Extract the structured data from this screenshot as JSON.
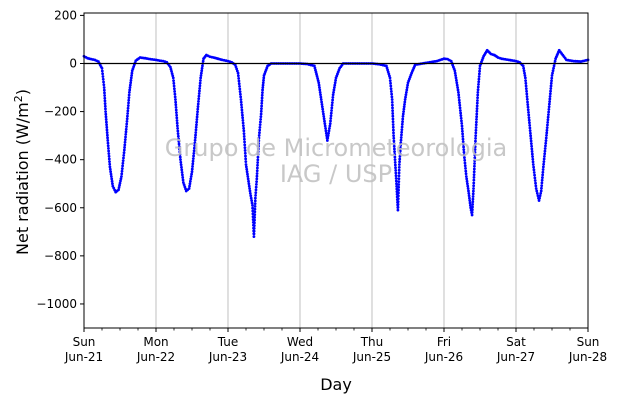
{
  "chart_data": {
    "type": "scatter",
    "title": "",
    "xlabel": "Day",
    "ylabel_main": "Net radiation (W/m",
    "ylabel_sup": "2",
    "ylabel_close": ")",
    "ylim": [
      -1100,
      210
    ],
    "xlim": [
      0,
      7
    ],
    "y_ticks": [
      200,
      0,
      -200,
      -400,
      -600,
      -800,
      -1000
    ],
    "y_tick_labels": [
      "200",
      "0",
      "−200",
      "−400",
      "−600",
      "−800",
      "−1000"
    ],
    "x_ticks": [
      {
        "x": 0,
        "day": "Sun",
        "date": "Jun-21"
      },
      {
        "x": 1,
        "day": "Mon",
        "date": "Jun-22"
      },
      {
        "x": 2,
        "day": "Tue",
        "date": "Jun-23"
      },
      {
        "x": 3,
        "day": "Wed",
        "date": "Jun-24"
      },
      {
        "x": 4,
        "day": "Thu",
        "date": "Jun-25"
      },
      {
        "x": 5,
        "day": "Fri",
        "date": "Jun-26"
      },
      {
        "x": 6,
        "day": "Sat",
        "date": "Jun-27"
      },
      {
        "x": 7,
        "day": "Sun",
        "date": "Jun-28"
      }
    ],
    "grid": "vertical",
    "reference_line_y": 0,
    "series": [
      {
        "color": "#0000ff",
        "points": [
          [
            0.0,
            30
          ],
          [
            0.05,
            22
          ],
          [
            0.1,
            18
          ],
          [
            0.15,
            15
          ],
          [
            0.2,
            8
          ],
          [
            0.25,
            -20
          ],
          [
            0.28,
            -100
          ],
          [
            0.3,
            -200
          ],
          [
            0.33,
            -320
          ],
          [
            0.36,
            -430
          ],
          [
            0.4,
            -510
          ],
          [
            0.44,
            -535
          ],
          [
            0.48,
            -525
          ],
          [
            0.52,
            -470
          ],
          [
            0.56,
            -360
          ],
          [
            0.6,
            -230
          ],
          [
            0.63,
            -120
          ],
          [
            0.67,
            -30
          ],
          [
            0.72,
            12
          ],
          [
            0.78,
            25
          ],
          [
            0.85,
            22
          ],
          [
            0.92,
            18
          ],
          [
            1.0,
            15
          ],
          [
            1.05,
            12
          ],
          [
            1.1,
            10
          ],
          [
            1.15,
            5
          ],
          [
            1.2,
            -15
          ],
          [
            1.24,
            -60
          ],
          [
            1.27,
            -150
          ],
          [
            1.3,
            -270
          ],
          [
            1.34,
            -400
          ],
          [
            1.38,
            -495
          ],
          [
            1.42,
            -530
          ],
          [
            1.46,
            -520
          ],
          [
            1.5,
            -450
          ],
          [
            1.54,
            -330
          ],
          [
            1.58,
            -190
          ],
          [
            1.62,
            -60
          ],
          [
            1.66,
            20
          ],
          [
            1.7,
            35
          ],
          [
            1.75,
            28
          ],
          [
            1.8,
            25
          ],
          [
            1.86,
            20
          ],
          [
            1.92,
            15
          ],
          [
            2.0,
            10
          ],
          [
            2.05,
            5
          ],
          [
            2.1,
            -5
          ],
          [
            2.14,
            -40
          ],
          [
            2.18,
            -150
          ],
          [
            2.22,
            -280
          ],
          [
            2.25,
            -420
          ],
          [
            2.28,
            -480
          ],
          [
            2.31,
            -540
          ],
          [
            2.34,
            -590
          ],
          [
            2.36,
            -720
          ],
          [
            2.38,
            -560
          ],
          [
            2.4,
            -480
          ],
          [
            2.43,
            -310
          ],
          [
            2.46,
            -210
          ],
          [
            2.48,
            -110
          ],
          [
            2.5,
            -50
          ],
          [
            2.55,
            -10
          ],
          [
            2.6,
            0
          ],
          [
            2.7,
            0
          ],
          [
            2.8,
            0
          ],
          [
            2.9,
            0
          ],
          [
            3.0,
            0
          ],
          [
            3.1,
            -2
          ],
          [
            3.2,
            -10
          ],
          [
            3.26,
            -80
          ],
          [
            3.3,
            -160
          ],
          [
            3.34,
            -240
          ],
          [
            3.38,
            -320
          ],
          [
            3.42,
            -250
          ],
          [
            3.46,
            -130
          ],
          [
            3.5,
            -60
          ],
          [
            3.55,
            -20
          ],
          [
            3.6,
            0
          ],
          [
            3.7,
            0
          ],
          [
            3.8,
            0
          ],
          [
            3.9,
            0
          ],
          [
            4.0,
            0
          ],
          [
            4.1,
            -3
          ],
          [
            4.2,
            -10
          ],
          [
            4.25,
            -60
          ],
          [
            4.28,
            -150
          ],
          [
            4.3,
            -300
          ],
          [
            4.32,
            -400
          ],
          [
            4.34,
            -500
          ],
          [
            4.36,
            -610
          ],
          [
            4.38,
            -420
          ],
          [
            4.4,
            -330
          ],
          [
            4.43,
            -220
          ],
          [
            4.46,
            -150
          ],
          [
            4.5,
            -80
          ],
          [
            4.55,
            -40
          ],
          [
            4.6,
            -5
          ],
          [
            4.7,
            0
          ],
          [
            4.8,
            5
          ],
          [
            4.9,
            10
          ],
          [
            5.0,
            20
          ],
          [
            5.05,
            18
          ],
          [
            5.1,
            10
          ],
          [
            5.15,
            -30
          ],
          [
            5.2,
            -120
          ],
          [
            5.25,
            -260
          ],
          [
            5.28,
            -380
          ],
          [
            5.31,
            -470
          ],
          [
            5.34,
            -530
          ],
          [
            5.37,
            -600
          ],
          [
            5.39,
            -630
          ],
          [
            5.41,
            -520
          ],
          [
            5.44,
            -300
          ],
          [
            5.47,
            -120
          ],
          [
            5.5,
            -10
          ],
          [
            5.55,
            30
          ],
          [
            5.6,
            55
          ],
          [
            5.65,
            40
          ],
          [
            5.7,
            35
          ],
          [
            5.75,
            25
          ],
          [
            5.8,
            20
          ],
          [
            5.9,
            15
          ],
          [
            6.0,
            10
          ],
          [
            6.05,
            5
          ],
          [
            6.1,
            -10
          ],
          [
            6.13,
            -60
          ],
          [
            6.16,
            -160
          ],
          [
            6.2,
            -290
          ],
          [
            6.24,
            -420
          ],
          [
            6.28,
            -520
          ],
          [
            6.32,
            -570
          ],
          [
            6.35,
            -530
          ],
          [
            6.38,
            -430
          ],
          [
            6.42,
            -310
          ],
          [
            6.46,
            -180
          ],
          [
            6.5,
            -50
          ],
          [
            6.55,
            20
          ],
          [
            6.6,
            55
          ],
          [
            6.65,
            35
          ],
          [
            6.7,
            15
          ],
          [
            6.8,
            10
          ],
          [
            6.9,
            8
          ],
          [
            7.0,
            15
          ]
        ]
      }
    ]
  },
  "watermark": {
    "line1": "Grupo de Micrometeorologia",
    "line2": "IAG / USP"
  },
  "colors": {
    "points": "#0000ff",
    "grid": "#b0b0b0",
    "reference_line": "#000000",
    "watermark": "#bfbfbf"
  }
}
